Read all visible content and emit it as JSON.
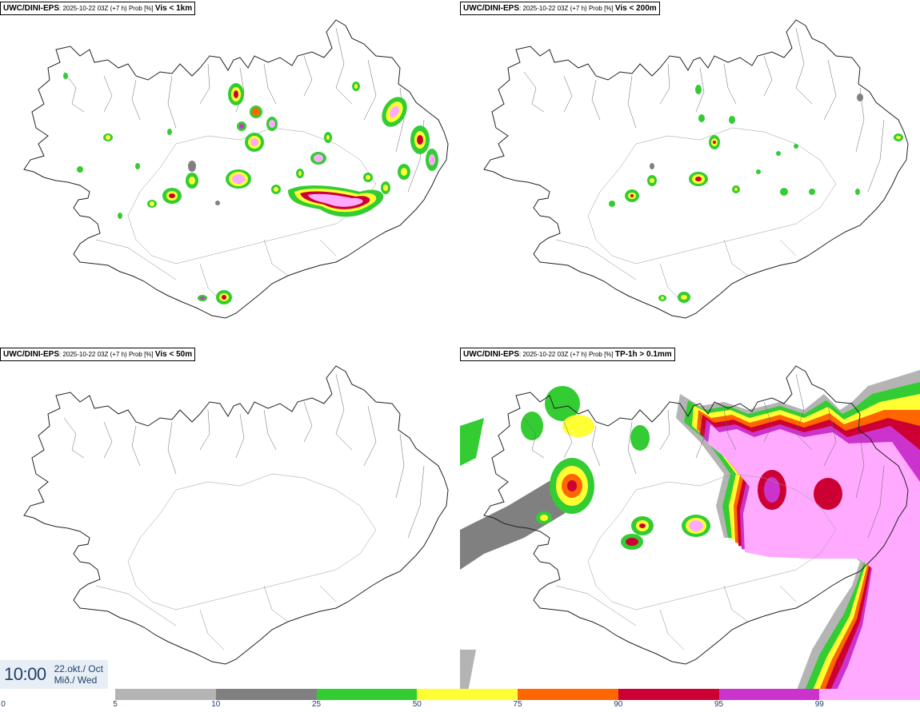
{
  "panels": [
    {
      "model": "UWC/DINI-EPS",
      "meta": ": 2025-10-22 03Z (+7 h) Prob [%] ",
      "variable": "Vis < 1km"
    },
    {
      "model": "UWC/DINI-EPS",
      "meta": ": 2025-10-22 03Z (+7 h) Prob [%] ",
      "variable": "Vis < 200m"
    },
    {
      "model": "UWC/DINI-EPS",
      "meta": ": 2025-10-22 03Z (+7 h) Prob [%] ",
      "variable": "Vis < 50m"
    },
    {
      "model": "UWC/DINI-EPS",
      "meta": ": 2025-10-22 03Z (+7 h) Prob [%] ",
      "variable": "TP-1h > 0.1mm"
    }
  ],
  "valid_time": {
    "time": "10:00",
    "date": "22.okt./ Oct",
    "weekday": "Mið./ Wed"
  },
  "colorbar": {
    "ticks": [
      "0",
      "5",
      "10",
      "25",
      "50",
      "75",
      "90",
      "95",
      "99"
    ],
    "colors": [
      "#b4b4b4",
      "#808080",
      "#33cc33",
      "#ffff33",
      "#ff6600",
      "#cc0033",
      "#cc33cc",
      "#ffaaff"
    ]
  },
  "colors": {
    "coastline": "#222222",
    "background": "#ffffff"
  }
}
